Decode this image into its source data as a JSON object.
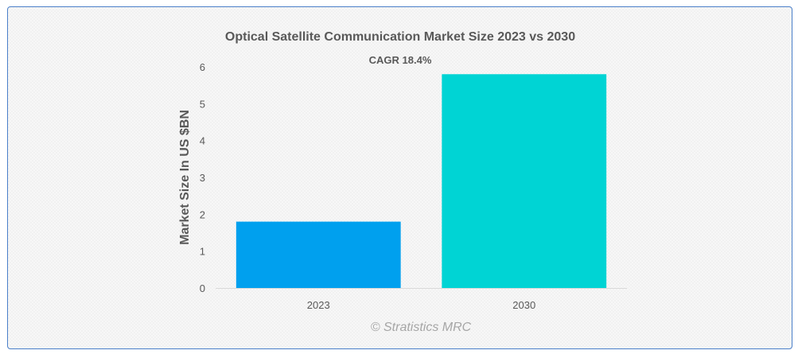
{
  "chart_data": {
    "type": "bar",
    "title": "Optical Satellite Communication Market Size 2023 vs 2030",
    "annotation": "CAGR 18.4%",
    "xlabel": "",
    "ylabel": "Market Size In US $BN",
    "categories": [
      "2023",
      "2030"
    ],
    "values": [
      1.8,
      5.8
    ],
    "bar_colors": [
      "#00a0ee",
      "#00d4d4"
    ],
    "ylim": [
      0,
      6
    ],
    "yticks": [
      "0",
      "1",
      "2",
      "3",
      "4",
      "5",
      "6"
    ],
    "grid": false,
    "legend": "none"
  },
  "watermark": "© Stratistics MRC",
  "colors": {
    "border": "#4a7fc9",
    "text": "#595959",
    "axis": "#d9d9d9"
  }
}
